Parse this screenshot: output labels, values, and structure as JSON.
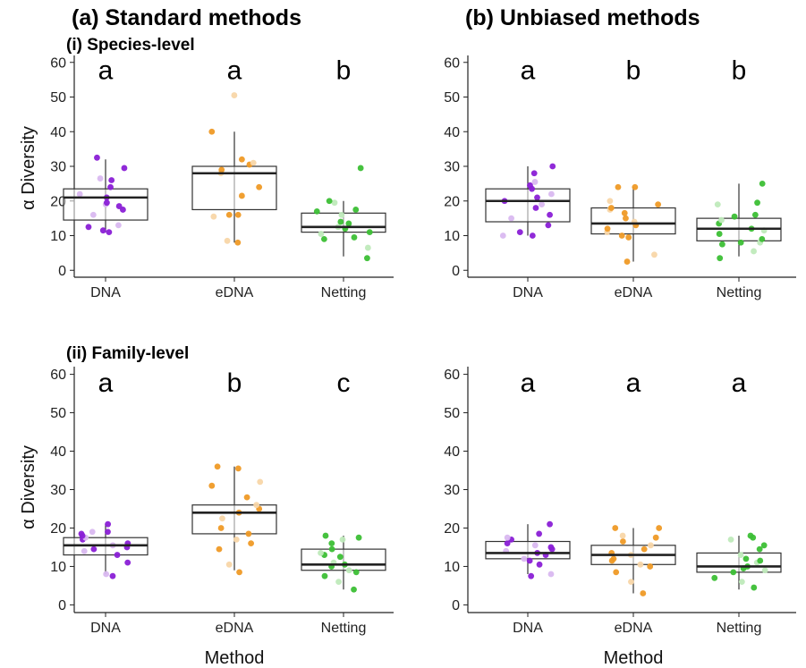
{
  "figure": {
    "column_titles": [
      "(a) Standard methods",
      "(b) Unbiased methods"
    ],
    "row_titles": [
      "(i) Species-level",
      "(ii) Family-level"
    ],
    "y_axis_label": "α Diversity",
    "x_axis_label": "Method",
    "colors": {
      "DNA": "#8a1fd6",
      "DNA_light": "#d9b8f0",
      "eDNA": "#ef9a26",
      "eDNA_light": "#f8d6a8",
      "Netting": "#3cbf35",
      "Netting_light": "#bfeabb",
      "box_stroke": "#333333",
      "median": "#222222"
    }
  },
  "chart_data": [
    {
      "type": "box",
      "panel": "a-i",
      "categories": [
        "DNA",
        "eDNA",
        "Netting"
      ],
      "ylim": [
        -2,
        62
      ],
      "yticks": [
        0,
        10,
        20,
        30,
        40,
        50,
        60
      ],
      "significance": [
        "a",
        "a",
        "b"
      ],
      "boxes": [
        {
          "category": "DNA",
          "whisker_low": 11,
          "q1": 14.5,
          "median": 21,
          "q3": 23.5,
          "whisker_high": 32
        },
        {
          "category": "eDNA",
          "whisker_low": 8,
          "q1": 17.5,
          "median": 28,
          "q3": 30,
          "whisker_high": 40
        },
        {
          "category": "Netting",
          "whisker_low": 4,
          "q1": 11,
          "median": 12.5,
          "q3": 16.5,
          "whisker_high": 20
        }
      ],
      "points": {
        "DNA": [
          12.5,
          13,
          11,
          11.5,
          16,
          17.5,
          18.5,
          19,
          19.5,
          21,
          22,
          24,
          26,
          26.5,
          29.5,
          32.5
        ],
        "eDNA": [
          8,
          8.5,
          16,
          16,
          15.5,
          21.5,
          24,
          28,
          29,
          30.5,
          31,
          32,
          40,
          50.5
        ],
        "Netting": [
          3.5,
          6.5,
          9,
          9.5,
          10.5,
          11,
          12,
          12.5,
          13.5,
          14,
          16,
          17,
          17.5,
          19.5,
          20,
          29.5
        ]
      }
    },
    {
      "type": "box",
      "panel": "b-i",
      "categories": [
        "DNA",
        "eDNA",
        "Netting"
      ],
      "ylim": [
        -2,
        62
      ],
      "yticks": [
        0,
        10,
        20,
        30,
        40,
        50,
        60
      ],
      "significance": [
        "a",
        "b",
        "b"
      ],
      "boxes": [
        {
          "category": "DNA",
          "whisker_low": 10,
          "q1": 14,
          "median": 20,
          "q3": 23.5,
          "whisker_high": 30
        },
        {
          "category": "eDNA",
          "whisker_low": 2.5,
          "q1": 10.5,
          "median": 13.5,
          "q3": 18,
          "whisker_high": 24
        },
        {
          "category": "Netting",
          "whisker_low": 4,
          "q1": 8.5,
          "median": 12,
          "q3": 15,
          "whisker_high": 25
        }
      ],
      "points": {
        "DNA": [
          10,
          10,
          11,
          13,
          15,
          16,
          18,
          19,
          20,
          21,
          22,
          23.5,
          24.5,
          25.5,
          28,
          30
        ],
        "eDNA": [
          2.5,
          4.5,
          9.5,
          10,
          11,
          12,
          13,
          14,
          15,
          16.5,
          17.5,
          18,
          19,
          20,
          24,
          24
        ],
        "Netting": [
          3.5,
          5.5,
          7.5,
          8,
          8,
          9,
          10.5,
          11.5,
          12,
          13.5,
          14.5,
          15.5,
          16,
          19,
          19.5,
          25
        ]
      }
    },
    {
      "type": "box",
      "panel": "a-ii",
      "categories": [
        "DNA",
        "eDNA",
        "Netting"
      ],
      "ylim": [
        -2,
        62
      ],
      "yticks": [
        0,
        10,
        20,
        30,
        40,
        50,
        60
      ],
      "significance": [
        "a",
        "b",
        "c"
      ],
      "boxes": [
        {
          "category": "DNA",
          "whisker_low": 8,
          "q1": 13,
          "median": 15.5,
          "q3": 17.5,
          "whisker_high": 21
        },
        {
          "category": "eDNA",
          "whisker_low": 9,
          "q1": 18.5,
          "median": 24,
          "q3": 26,
          "whisker_high": 36
        },
        {
          "category": "Netting",
          "whisker_low": 4,
          "q1": 9,
          "median": 10.5,
          "q3": 14.5,
          "whisker_high": 18
        }
      ],
      "points": {
        "DNA": [
          7.5,
          8,
          11,
          13,
          14,
          14.5,
          15,
          15.5,
          16,
          17,
          17.5,
          18,
          18.5,
          19,
          19,
          21
        ],
        "eDNA": [
          8.5,
          10.5,
          14.5,
          16,
          17,
          18.5,
          20,
          22.5,
          24,
          25,
          26,
          28,
          31,
          32,
          35.5,
          36
        ],
        "Netting": [
          4,
          6,
          7.5,
          8.5,
          9,
          10,
          10.5,
          11,
          12.5,
          13,
          13.5,
          14.5,
          16,
          17,
          17.5,
          18
        ]
      }
    },
    {
      "type": "box",
      "panel": "b-ii",
      "categories": [
        "DNA",
        "eDNA",
        "Netting"
      ],
      "ylim": [
        -2,
        62
      ],
      "yticks": [
        0,
        10,
        20,
        30,
        40,
        50,
        60
      ],
      "significance": [
        "a",
        "a",
        "a"
      ],
      "boxes": [
        {
          "category": "DNA",
          "whisker_low": 8,
          "q1": 12,
          "median": 13.5,
          "q3": 16.5,
          "whisker_high": 21
        },
        {
          "category": "eDNA",
          "whisker_low": 3,
          "q1": 10.5,
          "median": 13,
          "q3": 15.5,
          "whisker_high": 20
        },
        {
          "category": "Netting",
          "whisker_low": 4,
          "q1": 8.5,
          "median": 10,
          "q3": 13.5,
          "whisker_high": 18
        }
      ],
      "points": {
        "DNA": [
          7.5,
          8,
          10.5,
          11.5,
          12,
          13,
          13.5,
          14,
          14.5,
          15,
          15.5,
          16,
          17,
          17.5,
          18.5,
          21
        ],
        "eDNA": [
          3,
          6,
          8.5,
          10,
          10.5,
          11.5,
          12,
          13,
          13.5,
          14.5,
          15.5,
          16.5,
          17.5,
          18,
          20,
          20
        ],
        "Netting": [
          4.5,
          6,
          7,
          8.5,
          9,
          9.5,
          10,
          11,
          11.5,
          12,
          13,
          14.5,
          15.5,
          17,
          17.5,
          18
        ]
      }
    }
  ]
}
